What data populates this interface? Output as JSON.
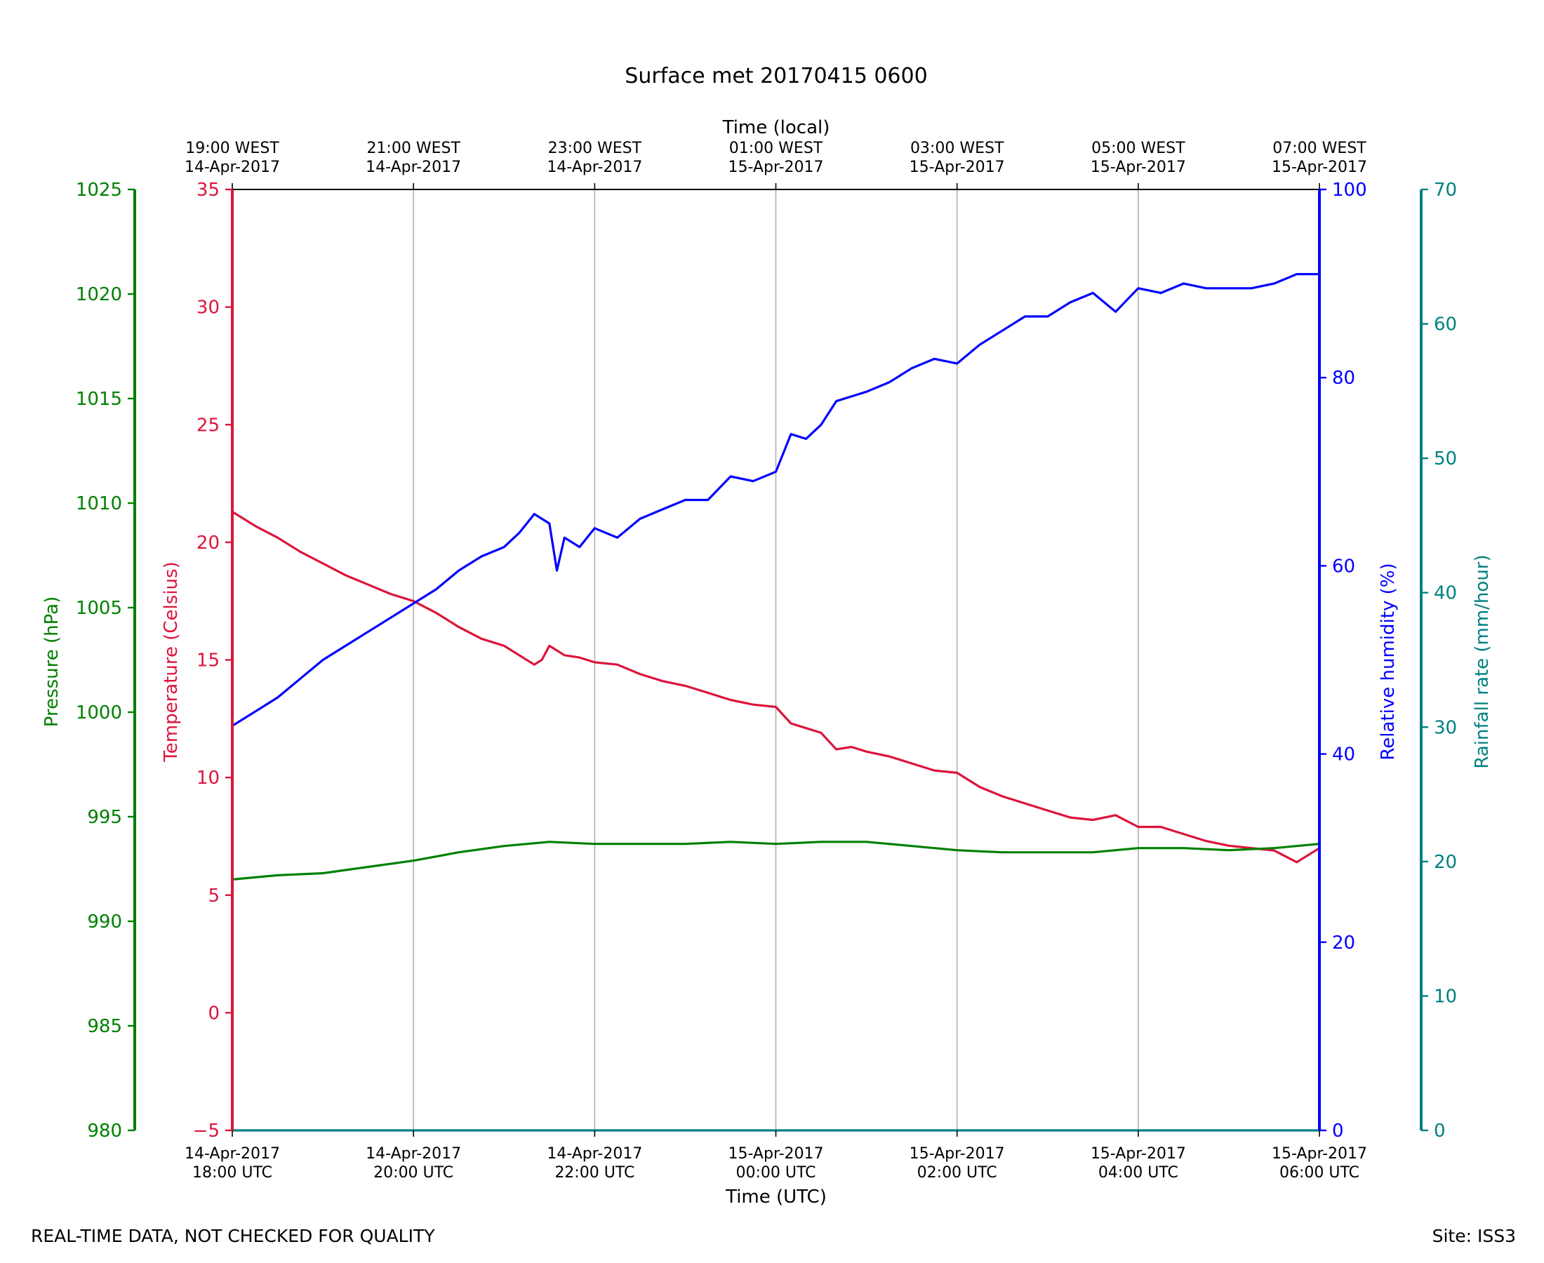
{
  "chart_data": {
    "type": "line",
    "title": "Surface met 20170415 0600",
    "xlabel": "Time (UTC)",
    "x2label": "Time (local)",
    "x_range": [
      "2017-04-14T18:00Z",
      "2017-04-15T06:00Z"
    ],
    "x_ticks": [
      {
        "utc": "2017-04-14T18:00Z",
        "label_line1": "14-Apr-2017",
        "label_line2": "18:00 UTC",
        "local_line1": "19:00 WEST",
        "local_line2": "14-Apr-2017"
      },
      {
        "utc": "2017-04-14T20:00Z",
        "label_line1": "14-Apr-2017",
        "label_line2": "20:00 UTC",
        "local_line1": "21:00 WEST",
        "local_line2": "14-Apr-2017"
      },
      {
        "utc": "2017-04-14T22:00Z",
        "label_line1": "14-Apr-2017",
        "label_line2": "22:00 UTC",
        "local_line1": "23:00 WEST",
        "local_line2": "14-Apr-2017"
      },
      {
        "utc": "2017-04-15T00:00Z",
        "label_line1": "15-Apr-2017",
        "label_line2": "00:00 UTC",
        "local_line1": "01:00 WEST",
        "local_line2": "15-Apr-2017"
      },
      {
        "utc": "2017-04-15T02:00Z",
        "label_line1": "15-Apr-2017",
        "label_line2": "02:00 UTC",
        "local_line1": "03:00 WEST",
        "local_line2": "15-Apr-2017"
      },
      {
        "utc": "2017-04-15T04:00Z",
        "label_line1": "15-Apr-2017",
        "label_line2": "04:00 UTC",
        "local_line1": "05:00 WEST",
        "local_line2": "15-Apr-2017"
      },
      {
        "utc": "2017-04-15T06:00Z",
        "label_line1": "15-Apr-2017",
        "label_line2": "06:00 UTC",
        "local_line1": "07:00 WEST",
        "local_line2": "15-Apr-2017"
      }
    ],
    "grid": "vertical at x ticks",
    "axes": {
      "pressure": {
        "label": "Pressure (hPa)",
        "range": [
          980,
          1025
        ],
        "ticks": [
          980,
          985,
          990,
          995,
          1000,
          1005,
          1010,
          1015,
          1020,
          1025
        ],
        "color": "#008000",
        "side": "left-outer"
      },
      "temperature": {
        "label": "Temperature (Celsius)",
        "range": [
          -5,
          35
        ],
        "ticks": [
          -5,
          0,
          5,
          10,
          15,
          20,
          25,
          30,
          35
        ],
        "color": "#dc143c",
        "side": "left-inner"
      },
      "humidity": {
        "label": "Relative humidity (%)",
        "range": [
          0,
          100
        ],
        "ticks": [
          0,
          20,
          40,
          60,
          80,
          100
        ],
        "color": "#0000ff",
        "side": "right-inner"
      },
      "rainfall": {
        "label": "Rainfall rate (mm/hour)",
        "range": [
          0,
          70
        ],
        "ticks": [
          0,
          10,
          20,
          30,
          40,
          50,
          60,
          70
        ],
        "color": "#008080",
        "side": "right-outer"
      }
    },
    "series": [
      {
        "axis": "temperature",
        "color": "#dc143c",
        "x": [
          "2017-04-14T18:00Z",
          "2017-04-14T18:05Z",
          "2017-04-14T18:15Z",
          "2017-04-14T18:30Z",
          "2017-04-14T18:45Z",
          "2017-04-14T19:00Z",
          "2017-04-14T19:15Z",
          "2017-04-14T19:30Z",
          "2017-04-14T19:45Z",
          "2017-04-14T20:00Z",
          "2017-04-14T20:15Z",
          "2017-04-14T20:30Z",
          "2017-04-14T20:45Z",
          "2017-04-14T21:00Z",
          "2017-04-14T21:10Z",
          "2017-04-14T21:20Z",
          "2017-04-14T21:25Z",
          "2017-04-14T21:30Z",
          "2017-04-14T21:40Z",
          "2017-04-14T21:50Z",
          "2017-04-14T22:00Z",
          "2017-04-14T22:15Z",
          "2017-04-14T22:30Z",
          "2017-04-14T22:45Z",
          "2017-04-14T23:00Z",
          "2017-04-14T23:15Z",
          "2017-04-14T23:30Z",
          "2017-04-14T23:45Z",
          "2017-04-15T00:00Z",
          "2017-04-15T00:10Z",
          "2017-04-15T00:20Z",
          "2017-04-15T00:30Z",
          "2017-04-15T00:40Z",
          "2017-04-15T00:50Z",
          "2017-04-15T01:00Z",
          "2017-04-15T01:15Z",
          "2017-04-15T01:30Z",
          "2017-04-15T01:45Z",
          "2017-04-15T02:00Z",
          "2017-04-15T02:15Z",
          "2017-04-15T02:30Z",
          "2017-04-15T02:45Z",
          "2017-04-15T03:00Z",
          "2017-04-15T03:15Z",
          "2017-04-15T03:30Z",
          "2017-04-15T03:45Z",
          "2017-04-15T04:00Z",
          "2017-04-15T04:15Z",
          "2017-04-15T04:30Z",
          "2017-04-15T04:45Z",
          "2017-04-15T05:00Z",
          "2017-04-15T05:15Z",
          "2017-04-15T05:30Z",
          "2017-04-15T05:45Z",
          "2017-04-15T06:00Z"
        ],
        "values": [
          21.3,
          21.1,
          20.7,
          20.2,
          19.6,
          19.1,
          18.6,
          18.2,
          17.8,
          17.5,
          17.0,
          16.4,
          15.9,
          15.6,
          15.2,
          14.8,
          15.0,
          15.6,
          15.2,
          15.1,
          14.9,
          14.8,
          14.4,
          14.1,
          13.9,
          13.6,
          13.3,
          13.1,
          13.0,
          12.3,
          12.1,
          11.9,
          11.2,
          11.3,
          11.1,
          10.9,
          10.6,
          10.3,
          10.2,
          9.6,
          9.2,
          8.9,
          8.6,
          8.3,
          8.2,
          8.4,
          7.9,
          7.9,
          7.6,
          7.3,
          7.1,
          7.0,
          6.9,
          6.4,
          7.0
        ]
      },
      {
        "axis": "humidity",
        "color": "#0000ff",
        "x": [
          "2017-04-14T18:00Z",
          "2017-04-14T18:15Z",
          "2017-04-14T18:30Z",
          "2017-04-14T18:45Z",
          "2017-04-14T19:00Z",
          "2017-04-14T19:15Z",
          "2017-04-14T19:30Z",
          "2017-04-14T19:45Z",
          "2017-04-14T20:00Z",
          "2017-04-14T20:15Z",
          "2017-04-14T20:30Z",
          "2017-04-14T20:45Z",
          "2017-04-14T21:00Z",
          "2017-04-14T21:10Z",
          "2017-04-14T21:20Z",
          "2017-04-14T21:30Z",
          "2017-04-14T21:35Z",
          "2017-04-14T21:40Z",
          "2017-04-14T21:50Z",
          "2017-04-14T22:00Z",
          "2017-04-14T22:15Z",
          "2017-04-14T22:30Z",
          "2017-04-14T22:45Z",
          "2017-04-14T23:00Z",
          "2017-04-14T23:15Z",
          "2017-04-14T23:30Z",
          "2017-04-14T23:45Z",
          "2017-04-15T00:00Z",
          "2017-04-15T00:10Z",
          "2017-04-15T00:20Z",
          "2017-04-15T00:30Z",
          "2017-04-15T00:40Z",
          "2017-04-15T00:50Z",
          "2017-04-15T01:00Z",
          "2017-04-15T01:15Z",
          "2017-04-15T01:30Z",
          "2017-04-15T01:45Z",
          "2017-04-15T02:00Z",
          "2017-04-15T02:15Z",
          "2017-04-15T02:30Z",
          "2017-04-15T02:45Z",
          "2017-04-15T03:00Z",
          "2017-04-15T03:15Z",
          "2017-04-15T03:30Z",
          "2017-04-15T03:45Z",
          "2017-04-15T04:00Z",
          "2017-04-15T04:15Z",
          "2017-04-15T04:30Z",
          "2017-04-15T04:45Z",
          "2017-04-15T05:00Z",
          "2017-04-15T05:15Z",
          "2017-04-15T05:30Z",
          "2017-04-15T05:45Z",
          "2017-04-15T06:00Z"
        ],
        "values": [
          43.0,
          44.5,
          46.0,
          48.0,
          50.0,
          51.5,
          53.0,
          54.5,
          56.0,
          57.5,
          59.5,
          61.0,
          62.0,
          63.5,
          65.5,
          64.5,
          59.5,
          63.0,
          62.0,
          64.0,
          63.0,
          65.0,
          66.0,
          67.0,
          67.0,
          69.5,
          69.0,
          70.0,
          74.0,
          73.5,
          75.0,
          77.5,
          78.0,
          78.5,
          79.5,
          81.0,
          82.0,
          81.5,
          83.5,
          85.0,
          86.5,
          86.5,
          88.0,
          89.0,
          87.0,
          89.5,
          89.0,
          90.0,
          89.5,
          89.5,
          89.5,
          90.0,
          91.0,
          91.0
        ]
      },
      {
        "axis": "pressure",
        "color": "#008000",
        "x": [
          "2017-04-14T18:00Z",
          "2017-04-14T18:30Z",
          "2017-04-14T19:00Z",
          "2017-04-14T19:30Z",
          "2017-04-14T20:00Z",
          "2017-04-14T20:30Z",
          "2017-04-14T21:00Z",
          "2017-04-14T21:30Z",
          "2017-04-14T22:00Z",
          "2017-04-14T22:30Z",
          "2017-04-14T23:00Z",
          "2017-04-14T23:30Z",
          "2017-04-15T00:00Z",
          "2017-04-15T00:30Z",
          "2017-04-15T01:00Z",
          "2017-04-15T01:30Z",
          "2017-04-15T02:00Z",
          "2017-04-15T02:30Z",
          "2017-04-15T03:00Z",
          "2017-04-15T03:30Z",
          "2017-04-15T04:00Z",
          "2017-04-15T04:30Z",
          "2017-04-15T05:00Z",
          "2017-04-15T05:30Z",
          "2017-04-15T06:00Z"
        ],
        "values": [
          992.0,
          992.2,
          992.3,
          992.6,
          992.9,
          993.3,
          993.6,
          993.8,
          993.7,
          993.7,
          993.7,
          993.8,
          993.7,
          993.8,
          993.8,
          993.6,
          993.4,
          993.3,
          993.3,
          993.3,
          993.5,
          993.5,
          993.4,
          993.5,
          993.7
        ]
      },
      {
        "axis": "rainfall",
        "color": "#008080",
        "x": [
          "2017-04-14T18:00Z",
          "2017-04-15T06:00Z"
        ],
        "values": [
          0,
          0
        ]
      }
    ]
  },
  "footer": {
    "left": "REAL-TIME DATA, NOT CHECKED FOR QUALITY",
    "right": "Site: ISS3"
  }
}
